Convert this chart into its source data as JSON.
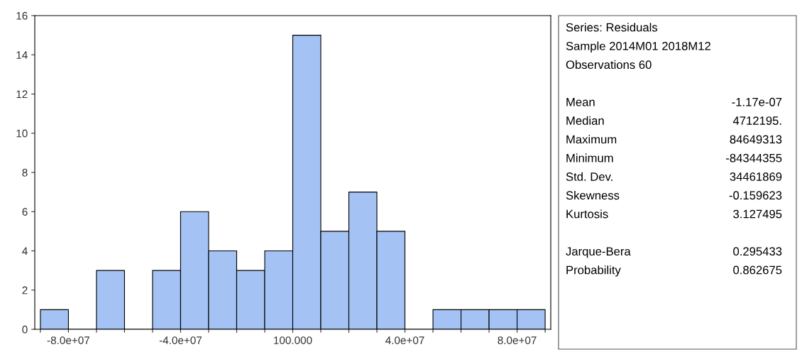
{
  "chart_data": {
    "type": "histogram",
    "bins": [
      -90000000,
      -80000000,
      -70000000,
      -60000000,
      -50000000,
      -40000000,
      -30000000,
      -20000000,
      -10000000,
      0,
      10000000,
      20000000,
      30000000,
      40000000,
      50000000,
      60000000,
      70000000,
      80000000,
      90000000
    ],
    "values": [
      1,
      0,
      3,
      0,
      3,
      6,
      4,
      3,
      4,
      15,
      5,
      7,
      5,
      0,
      1,
      1,
      1,
      1
    ],
    "color": "#a4c2f4",
    "xlim": [
      -92000000,
      92000000
    ],
    "xticks": [
      {
        "value": -90000000,
        "label": null
      },
      {
        "value": -80000000,
        "label": "-8.0e+07"
      },
      {
        "value": -70000000,
        "label": null
      },
      {
        "value": -60000000,
        "label": null
      },
      {
        "value": -50000000,
        "label": null
      },
      {
        "value": -40000000,
        "label": "-4.0e+07"
      },
      {
        "value": -30000000,
        "label": null
      },
      {
        "value": -20000000,
        "label": null
      },
      {
        "value": -10000000,
        "label": null
      },
      {
        "value": 100,
        "label": "100.000"
      },
      {
        "value": 10000000,
        "label": null
      },
      {
        "value": 20000000,
        "label": null
      },
      {
        "value": 30000000,
        "label": null
      },
      {
        "value": 40000000,
        "label": "4.0e+07"
      },
      {
        "value": 50000000,
        "label": null
      },
      {
        "value": 60000000,
        "label": null
      },
      {
        "value": 70000000,
        "label": null
      },
      {
        "value": 80000000,
        "label": "8.0e+07"
      },
      {
        "value": 90000000,
        "label": null
      }
    ],
    "ylim": [
      0,
      16
    ],
    "yticks": [
      0,
      2,
      4,
      6,
      8,
      10,
      12,
      14,
      16
    ],
    "annotations": [
      "Series: Residuals",
      "Sample 2014M01 2018M12",
      "Observations 60",
      "Mean",
      "-1.17e-07",
      "Median",
      "4712195.",
      "Maximum",
      "84649313",
      "Minimum",
      "-84344355",
      "Std. Dev.",
      "34461869",
      "Skewness",
      "-0.159623",
      "Kurtosis",
      "3.127495",
      "Jarque-Bera",
      "0.295433",
      "Probability",
      "0.862675"
    ]
  }
}
